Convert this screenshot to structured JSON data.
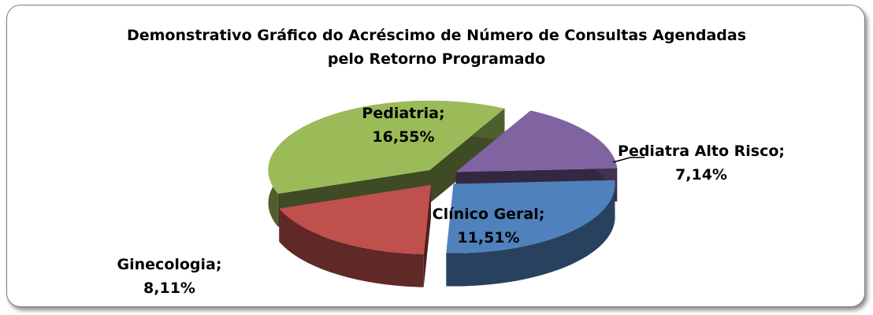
{
  "chart_data": {
    "type": "pie3d",
    "title": "Demonstrativo Gráfico do Acréscimo de Número de Consultas Agendadas pelo Retorno Programado",
    "categories": [
      "Pediatria;",
      "Pediatra Alto Risco;",
      "Clínico Geral;",
      "Ginecologia;"
    ],
    "values": [
      16.55,
      7.14,
      11.51,
      8.11
    ],
    "value_labels": [
      "16,55%",
      "7,14%",
      "11,51%",
      "8,11%"
    ],
    "colors": [
      "#9bbb59",
      "#8064a2",
      "#4f81bd",
      "#c0504d"
    ]
  }
}
